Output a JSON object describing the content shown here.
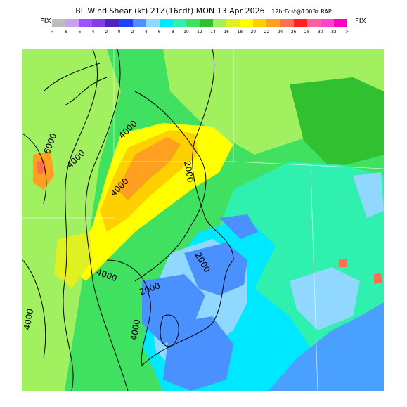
{
  "title": {
    "main": "BL Wind Shear (kt) 21Z(16cdt) MON 13 Apr 2026",
    "sub": "12hrFcst@1003z RAP"
  },
  "fix_left": "FIX",
  "fix_right": "FIX",
  "scale": {
    "ticks": [
      "<",
      "-8",
      "-6",
      "-4",
      "-2",
      "0",
      "2",
      "4",
      "6",
      "8",
      "10",
      "12",
      "14",
      "16",
      "18",
      "20",
      "22",
      "24",
      "26",
      "28",
      "30",
      "32",
      ">"
    ],
    "colors": [
      "#bdbdbd",
      "#c8a0f0",
      "#a050ff",
      "#8040e0",
      "#5020c0",
      "#2040ff",
      "#4a90ff",
      "#90d8ff",
      "#00e8ff",
      "#30f0b0",
      "#40e060",
      "#30c030",
      "#a0f060",
      "#e0f020",
      "#ffff00",
      "#ffd000",
      "#ffa020",
      "#ff7050",
      "#ff2020",
      "#ff60a0",
      "#ff40d0",
      "#ff00c0"
    ]
  },
  "map": {
    "contour_labels": [
      "6000",
      "4000",
      "4000",
      "2000",
      "4000",
      "2000",
      "2000",
      "4000",
      "4000",
      "4000"
    ],
    "palette": {
      "teal_low": "#30f0b0",
      "green": "#40e060",
      "dark_green": "#30c030",
      "lime": "#a0f060",
      "yellow_green": "#e0f020",
      "yellow": "#ffff00",
      "gold": "#ffd000",
      "orange": "#ffa020",
      "red": "#ff7050",
      "cyan": "#00e8ff",
      "light_blue": "#90d8ff",
      "blue": "#4a90ff",
      "sky": "#30c8f0",
      "gulf": "#4aa0ff"
    }
  }
}
